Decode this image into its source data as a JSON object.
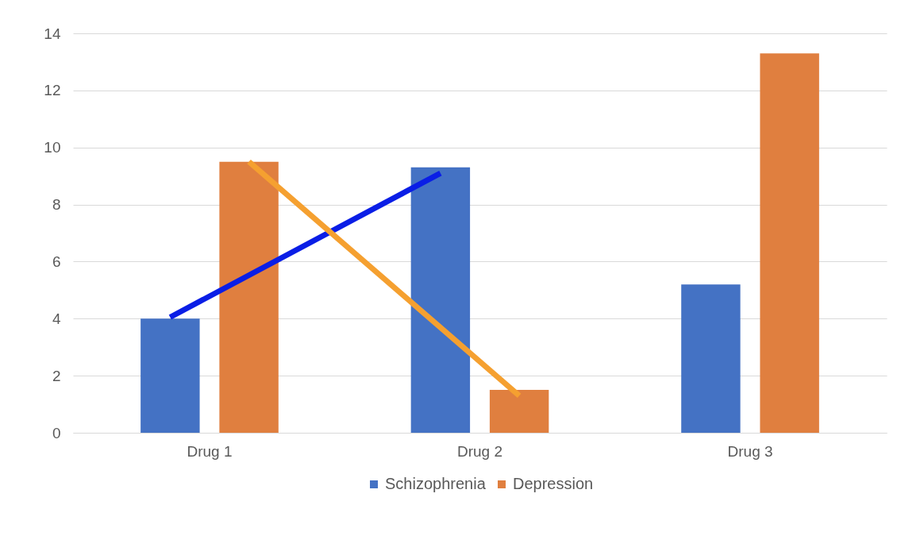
{
  "chart_data": {
    "type": "bar",
    "categories": [
      "Drug 1",
      "Drug 2",
      "Drug 3"
    ],
    "series": [
      {
        "name": "Schizophrenia",
        "color": "#4472c4",
        "values": [
          4,
          9.3,
          5.2
        ]
      },
      {
        "name": "Depression",
        "color": "#e07f3f",
        "values": [
          9.5,
          1.5,
          13.3
        ]
      },
      {
        "type": "line",
        "color": "#0a1ee6",
        "x": [
          "Drug 1",
          "Drug 2"
        ],
        "values": [
          4.05,
          9.1
        ]
      },
      {
        "type": "line",
        "color": "#f5a030",
        "x": [
          "Drug 1",
          "Drug 2"
        ],
        "values": [
          9.5,
          1.3
        ]
      }
    ],
    "ylim": [
      0,
      14
    ],
    "yticks": [
      0,
      2,
      4,
      6,
      8,
      10,
      12,
      14
    ],
    "grid": "y",
    "legend": "bottom"
  }
}
